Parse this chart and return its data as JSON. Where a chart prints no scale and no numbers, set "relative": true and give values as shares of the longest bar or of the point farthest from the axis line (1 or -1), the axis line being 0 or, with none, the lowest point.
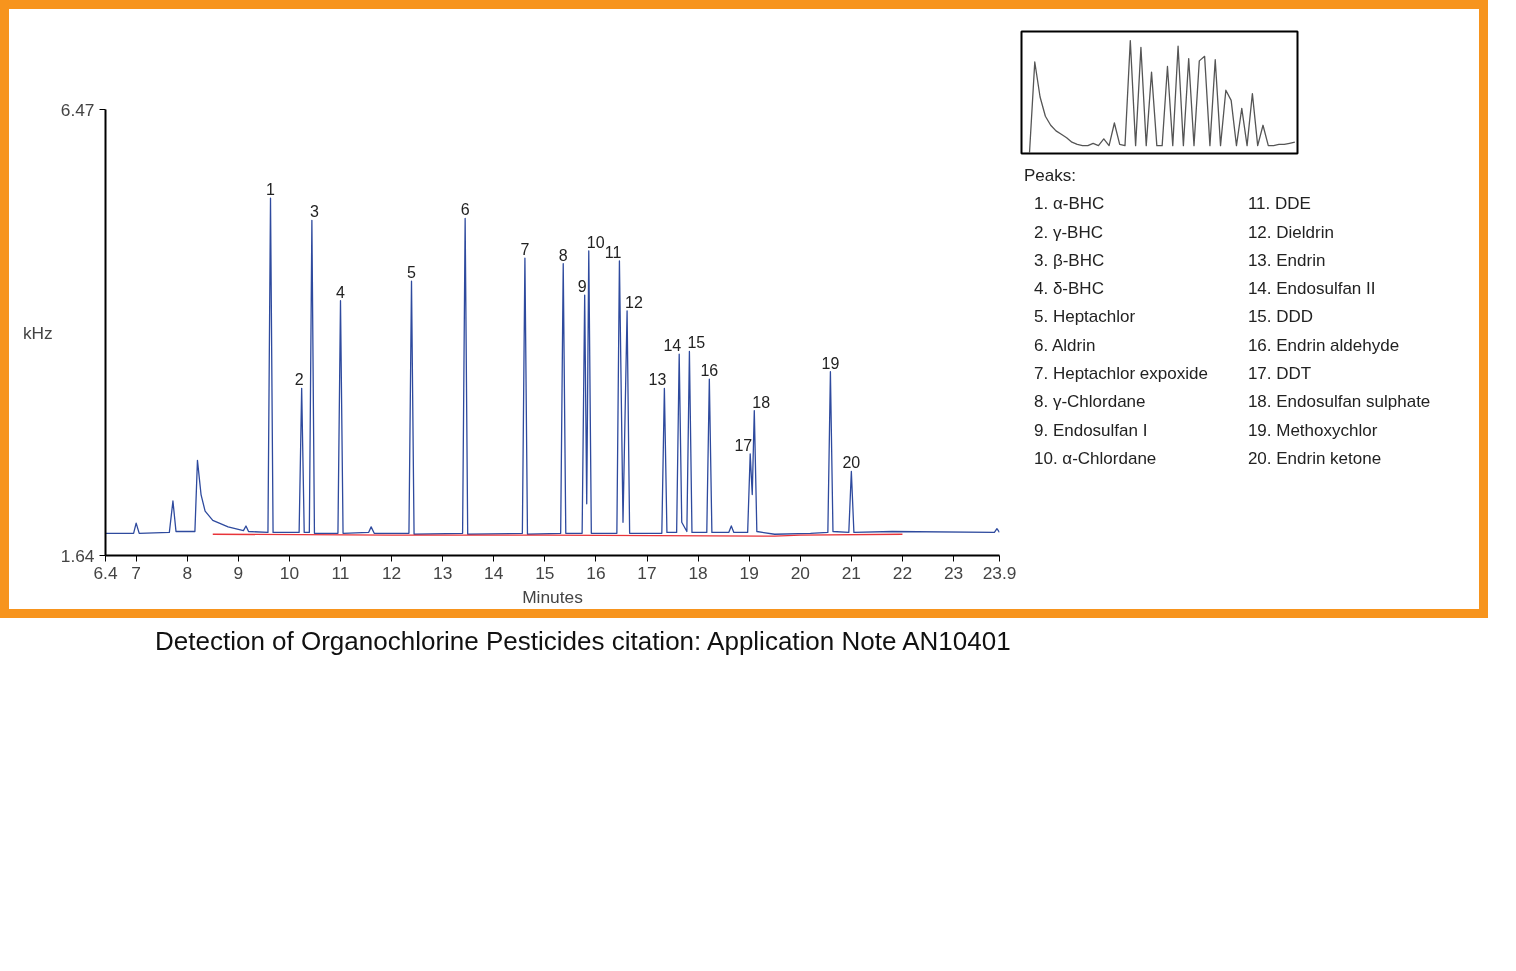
{
  "chart_data": [
    {
      "type": "line",
      "xlabel": "Minutes",
      "ylabel": "kHz",
      "xlim": [
        6.4,
        23.9
      ],
      "ylim": [
        1.64,
        6.47
      ],
      "xticks": [
        6.4,
        7,
        8,
        9,
        10,
        11,
        12,
        13,
        14,
        15,
        16,
        17,
        18,
        19,
        20,
        21,
        22,
        23,
        23.9
      ],
      "yticks": [
        1.64,
        6.47
      ],
      "series": [
        {
          "color": "#2e4a9e",
          "x": [
            6.4,
            6.95,
            7.0,
            7.06,
            7.65,
            7.72,
            7.78,
            8.15,
            8.2,
            8.27,
            8.35,
            8.5,
            8.8,
            9.1,
            9.15,
            9.2,
            9.58,
            9.63,
            9.68,
            10.19,
            10.24,
            10.29,
            10.39,
            10.44,
            10.49,
            10.95,
            11.0,
            11.05,
            11.55,
            11.6,
            11.66,
            12.34,
            12.39,
            12.44,
            13.39,
            13.44,
            13.49,
            14.56,
            14.61,
            14.66,
            15.31,
            15.36,
            15.41,
            15.73,
            15.78,
            15.82,
            15.86,
            15.91,
            16.41,
            16.46,
            16.53,
            16.61,
            16.66,
            17.29,
            17.34,
            17.39,
            17.58,
            17.63,
            17.68,
            17.78,
            17.83,
            17.88,
            18.17,
            18.22,
            18.27,
            18.6,
            18.65,
            18.7,
            18.97,
            19.02,
            19.06,
            19.1,
            19.15,
            19.5,
            20.2,
            20.54,
            20.59,
            20.64,
            20.95,
            21.0,
            21.05,
            21.8,
            23.8,
            23.85,
            23.9
          ],
          "values": [
            1.88,
            1.88,
            1.99,
            1.88,
            1.89,
            2.23,
            1.9,
            1.9,
            2.67,
            2.3,
            2.12,
            2.02,
            1.95,
            1.91,
            1.96,
            1.9,
            1.89,
            5.51,
            1.89,
            1.89,
            3.45,
            1.89,
            1.89,
            5.27,
            1.88,
            1.88,
            4.4,
            1.88,
            1.89,
            1.95,
            1.88,
            1.88,
            4.61,
            1.87,
            1.88,
            5.29,
            1.87,
            1.88,
            4.86,
            1.87,
            1.88,
            4.8,
            1.88,
            1.88,
            4.46,
            2.2,
            4.94,
            1.88,
            1.88,
            4.83,
            2.0,
            4.29,
            1.88,
            1.88,
            3.45,
            1.89,
            1.89,
            3.82,
            2.0,
            1.9,
            3.85,
            1.89,
            1.89,
            3.55,
            1.89,
            1.89,
            1.96,
            1.89,
            1.89,
            2.74,
            2.3,
            3.21,
            1.9,
            1.87,
            1.88,
            1.89,
            3.63,
            1.9,
            1.89,
            2.55,
            1.89,
            1.9,
            1.89,
            1.93,
            1.89
          ]
        },
        {
          "color": "#e8343a",
          "x": [
            8.5,
            12,
            15,
            19.5,
            20,
            22
          ],
          "values": [
            1.87,
            1.86,
            1.86,
            1.85,
            1.86,
            1.87
          ]
        }
      ],
      "annotations": [
        {
          "text": "1",
          "x": 9.63,
          "y": 5.51
        },
        {
          "text": "2",
          "x": 10.24,
          "y": 3.45
        },
        {
          "text": "3",
          "x": 10.44,
          "y": 5.27
        },
        {
          "text": "4",
          "x": 11.0,
          "y": 4.4
        },
        {
          "text": "5",
          "x": 12.39,
          "y": 4.61
        },
        {
          "text": "6",
          "x": 13.44,
          "y": 5.29
        },
        {
          "text": "7",
          "x": 14.61,
          "y": 4.86
        },
        {
          "text": "8",
          "x": 15.36,
          "y": 4.8
        },
        {
          "text": "9",
          "x": 15.78,
          "y": 4.46
        },
        {
          "text": "10",
          "x": 15.86,
          "y": 4.94
        },
        {
          "text": "11",
          "x": 16.46,
          "y": 4.83
        },
        {
          "text": "12",
          "x": 16.61,
          "y": 4.29
        },
        {
          "text": "13",
          "x": 17.34,
          "y": 3.45
        },
        {
          "text": "14",
          "x": 17.63,
          "y": 3.82
        },
        {
          "text": "15",
          "x": 17.83,
          "y": 3.85
        },
        {
          "text": "16",
          "x": 18.22,
          "y": 3.55
        },
        {
          "text": "17",
          "x": 19.02,
          "y": 2.74
        },
        {
          "text": "18",
          "x": 19.1,
          "y": 3.21
        },
        {
          "text": "19",
          "x": 20.59,
          "y": 3.63
        },
        {
          "text": "20",
          "x": 21.0,
          "y": 2.55
        },
        "Peaks:",
        "1. α-BHC",
        "2. γ-BHC",
        "3. β-BHC",
        "4. δ-BHC",
        "5. Heptachlor",
        "6. Aldrin",
        "7. Heptachlor expoxide",
        "8. γ-Chlordane",
        "9. Endosulfan I",
        "10. α-Chlordane",
        "11. DDE",
        "12. Dieldrin",
        "13. Endrin",
        "14. Endosulfan II",
        "15. DDD",
        "16. Endrin aldehyde",
        "17. DDT",
        "18. Endosulfan sulphate",
        "19. Methoxychlor",
        "20. Endrin ketone",
        "Detection of Organochlorine Pesticides citation: Application Note AN10401"
      ]
    },
    {
      "type": "line",
      "relative": true,
      "categories": [
        null,
        null,
        null,
        null,
        null,
        null,
        null,
        null,
        null,
        null,
        null,
        null,
        null,
        null,
        null,
        null,
        null,
        null,
        null,
        null,
        null,
        null,
        null,
        null,
        null,
        null,
        null,
        null,
        null,
        null,
        null,
        null,
        null,
        null,
        null,
        null,
        null,
        null,
        null,
        null,
        null,
        null,
        null,
        null,
        null,
        null,
        null,
        null,
        null,
        null,
        null,
        null
      ],
      "values": [
        0,
        0,
        0.81,
        0.5,
        0.33,
        0.25,
        0.2,
        0.17,
        0.14,
        0.1,
        0.08,
        0.07,
        0.07,
        0.09,
        0.07,
        0.13,
        0.07,
        0.27,
        0.08,
        0.07,
        1.0,
        0.07,
        0.94,
        0.07,
        0.72,
        0.07,
        0.07,
        0.77,
        0.07,
        0.95,
        0.07,
        0.84,
        0.07,
        0.82,
        0.86,
        0.07,
        0.83,
        0.07,
        0.56,
        0.47,
        0.07,
        0.4,
        0.07,
        0.53,
        0.07,
        0.25,
        0.07,
        0.07,
        0.08,
        0.08,
        0.09,
        0.1
      ],
      "color": "#555555"
    }
  ]
}
